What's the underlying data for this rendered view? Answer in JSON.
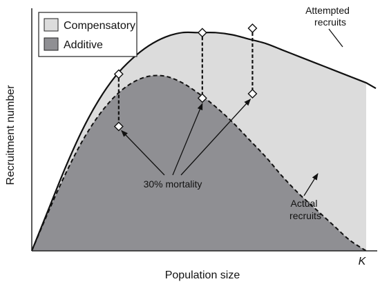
{
  "chart_data": {
    "type": "area",
    "xlabel": "Population size",
    "ylabel": "Recruitment number",
    "x_end_label": "K",
    "legend": {
      "placement": "top-left",
      "entries": [
        {
          "label": "Compensatory",
          "color": "#dcdcdc"
        },
        {
          "label": "Additive",
          "color": "#8f8f93"
        }
      ]
    },
    "x": [
      0,
      0.05,
      0.1,
      0.15,
      0.2,
      0.25,
      0.3,
      0.35,
      0.4,
      0.45,
      0.5,
      0.55,
      0.6,
      0.65,
      0.7,
      0.75,
      0.8,
      0.85,
      0.9,
      0.95,
      1.0
    ],
    "series": [
      {
        "name": "Attempted recruits",
        "role": "upper boundary",
        "color": "#111111",
        "line": "solid",
        "fill": "#dcdcdc",
        "values": [
          0,
          0.19,
          0.38,
          0.55,
          0.69,
          0.8,
          0.88,
          0.94,
          0.98,
          1.0,
          1.0,
          1.0,
          0.99,
          0.97,
          0.95,
          0.92,
          0.89,
          0.86,
          0.83,
          0.8,
          0.77
        ]
      },
      {
        "name": "Actual recruits",
        "role": "lower boundary",
        "color": "#111111",
        "line": "dashed",
        "fill": "#8f8f93",
        "values": [
          0,
          0.18,
          0.35,
          0.5,
          0.62,
          0.71,
          0.77,
          0.8,
          0.8,
          0.77,
          0.72,
          0.66,
          0.59,
          0.51,
          0.43,
          0.34,
          0.26,
          0.19,
          0.12,
          0.05,
          0
        ]
      }
    ],
    "mortality": {
      "label": "30% mortality",
      "pairs": [
        {
          "x": 0.26,
          "top": 0.81,
          "bottom": 0.57
        },
        {
          "x": 0.51,
          "top": 1.0,
          "bottom": 0.7
        },
        {
          "x": 0.66,
          "top": 1.02,
          "bottom": 0.72
        }
      ]
    },
    "annotations": {
      "attempted_line1": "Attempted",
      "attempted_line2": "recruits",
      "actual_line1": "Actual",
      "actual_line2": "recruits"
    },
    "xlim": [
      0,
      1
    ],
    "ylim": [
      0,
      1.08
    ],
    "grid": false
  }
}
